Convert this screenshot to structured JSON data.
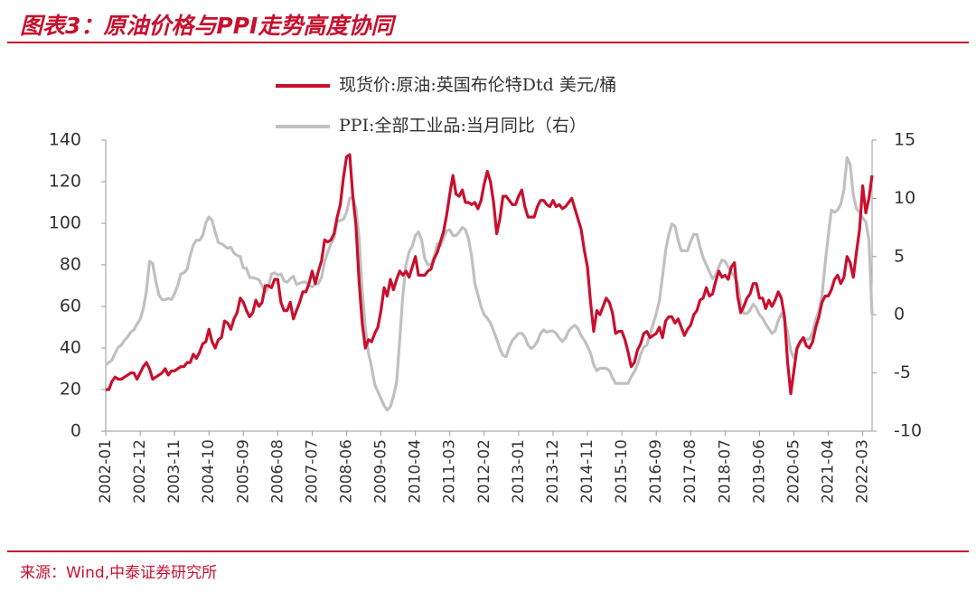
{
  "header": {
    "title": "图表3：原油价格与PPI走势高度协同"
  },
  "footer": {
    "source": "来源：Wind,中泰证券研究所"
  },
  "chart_data": {
    "type": "line",
    "categories": [
      "2002-01",
      null,
      null,
      null,
      null,
      null,
      null,
      null,
      null,
      null,
      null,
      "2002-12",
      null,
      null,
      null,
      null,
      null,
      null,
      null,
      null,
      null,
      null,
      "2003-11",
      null,
      null,
      null,
      null,
      null,
      null,
      null,
      null,
      null,
      null,
      "2004-10",
      null,
      null,
      null,
      null,
      null,
      null,
      null,
      null,
      null,
      null,
      "2005-09",
      null,
      null,
      null,
      null,
      null,
      null,
      null,
      null,
      null,
      null,
      "2006-08",
      null,
      null,
      null,
      null,
      null,
      null,
      null,
      null,
      null,
      null,
      "2007-07",
      null,
      null,
      null,
      null,
      null,
      null,
      null,
      null,
      null,
      null,
      "2008-06",
      null,
      null,
      null,
      null,
      null,
      null,
      null,
      null,
      null,
      null,
      "2009-05",
      null,
      null,
      null,
      null,
      null,
      null,
      null,
      null,
      null,
      null,
      "2010-04",
      null,
      null,
      null,
      null,
      null,
      null,
      null,
      null,
      null,
      null,
      "2011-03",
      null,
      null,
      null,
      null,
      null,
      null,
      null,
      null,
      null,
      null,
      "2012-02",
      null,
      null,
      null,
      null,
      null,
      null,
      null,
      null,
      null,
      null,
      "2013-01",
      null,
      null,
      null,
      null,
      null,
      null,
      null,
      null,
      null,
      null,
      "2013-12",
      null,
      null,
      null,
      null,
      null,
      null,
      null,
      null,
      null,
      null,
      "2014-11",
      null,
      null,
      null,
      null,
      null,
      null,
      null,
      null,
      null,
      null,
      "2015-10",
      null,
      null,
      null,
      null,
      null,
      null,
      null,
      null,
      null,
      null,
      "2016-09",
      null,
      null,
      null,
      null,
      null,
      null,
      null,
      null,
      null,
      null,
      "2017-08",
      null,
      null,
      null,
      null,
      null,
      null,
      null,
      null,
      null,
      null,
      "2018-07",
      null,
      null,
      null,
      null,
      null,
      null,
      null,
      null,
      null,
      null,
      "2019-06",
      null,
      null,
      null,
      null,
      null,
      null,
      null,
      null,
      null,
      null,
      "2020-05",
      null,
      null,
      null,
      null,
      null,
      null,
      null,
      null,
      null,
      null,
      "2021-04",
      null,
      null,
      null,
      null,
      null,
      null,
      null,
      null,
      null,
      null,
      "2022-03",
      null,
      null,
      null
    ],
    "series": [
      {
        "name": "现货价:原油:英国布伦特Dtd 美元/桶",
        "color": "#c8102e",
        "axis": "y",
        "values": [
          20,
          20,
          24,
          26,
          25,
          25,
          26,
          27,
          28,
          28,
          25,
          28,
          31,
          33,
          30,
          25,
          26,
          27,
          28,
          30,
          27,
          29,
          29,
          30,
          31,
          31,
          33,
          33,
          37,
          35,
          38,
          42,
          43,
          49,
          43,
          40,
          44,
          45,
          53,
          52,
          49,
          54,
          57,
          64,
          62,
          58,
          55,
          57,
          63,
          60,
          62,
          70,
          70,
          69,
          73,
          73,
          62,
          58,
          58,
          62,
          54,
          58,
          62,
          67,
          67,
          71,
          77,
          71,
          77,
          82,
          92,
          91,
          92,
          95,
          103,
          109,
          122,
          132,
          133,
          113,
          99,
          72,
          52,
          40,
          44,
          43,
          47,
          50,
          58,
          69,
          65,
          73,
          68,
          73,
          77,
          75,
          77,
          74,
          79,
          84,
          75,
          75,
          75,
          77,
          78,
          83,
          86,
          91,
          96,
          104,
          114,
          123,
          114,
          113,
          116,
          110,
          110,
          109,
          110,
          107,
          111,
          119,
          125,
          120,
          110,
          95,
          102,
          113,
          113,
          111,
          109,
          109,
          113,
          116,
          108,
          103,
          103,
          103,
          108,
          111,
          111,
          109,
          108,
          111,
          108,
          109,
          107,
          108,
          110,
          112,
          107,
          102,
          97,
          87,
          79,
          62,
          48,
          58,
          56,
          60,
          64,
          62,
          57,
          47,
          48,
          48,
          44,
          38,
          31,
          33,
          39,
          42,
          47,
          48,
          45,
          46,
          47,
          50,
          45,
          53,
          55,
          55,
          52,
          54,
          50,
          46,
          49,
          51,
          56,
          58,
          63,
          64,
          69,
          65,
          66,
          72,
          77,
          74,
          75,
          73,
          79,
          81,
          65,
          57,
          60,
          64,
          66,
          71,
          71,
          64,
          64,
          59,
          63,
          60,
          63,
          67,
          64,
          55,
          33,
          18,
          29,
          40,
          43,
          45,
          41,
          40,
          43,
          50,
          55,
          62,
          65,
          65,
          68,
          73,
          75,
          71,
          74,
          84,
          81,
          74,
          86,
          97,
          118,
          105,
          112,
          123
        ]
      },
      {
        "name": "PPI:全部工业品:当月同比（右）",
        "color": "#c0c0c0",
        "axis": "y2",
        "values": [
          -4.3,
          -4.1,
          -3.9,
          -3.3,
          -2.8,
          -2.6,
          -2.2,
          -1.9,
          -1.5,
          -1.3,
          -0.8,
          -0.4,
          0.5,
          2.0,
          4.6,
          4.4,
          2.9,
          1.7,
          1.3,
          1.3,
          1.4,
          1.3,
          1.8,
          2.5,
          3.5,
          3.6,
          3.9,
          5.1,
          6.0,
          6.4,
          6.4,
          6.8,
          7.9,
          8.4,
          8.1,
          7.1,
          6.2,
          6.1,
          5.9,
          5.7,
          5.8,
          5.3,
          5.1,
          5.0,
          4.0,
          4.0,
          3.2,
          3.2,
          3.1,
          3.0,
          2.5,
          1.9,
          2.4,
          3.5,
          3.6,
          3.4,
          3.5,
          2.9,
          2.8,
          3.1,
          3.3,
          2.6,
          2.7,
          2.8,
          2.8,
          2.5,
          2.4,
          2.6,
          2.7,
          3.2,
          4.6,
          5.4,
          6.1,
          6.6,
          8.0,
          8.1,
          8.2,
          8.8,
          10.0,
          10.1,
          9.1,
          6.6,
          2.0,
          -1.1,
          -3.3,
          -4.5,
          -6.0,
          -6.6,
          -7.2,
          -7.8,
          -8.2,
          -7.9,
          -7.0,
          -5.8,
          -2.1,
          1.7,
          4.3,
          5.4,
          5.9,
          6.8,
          7.1,
          6.4,
          4.8,
          4.3,
          4.3,
          5.0,
          6.1,
          5.9,
          6.6,
          7.2,
          7.3,
          6.8,
          6.8,
          7.1,
          7.5,
          7.3,
          6.5,
          5.0,
          2.7,
          1.7,
          0.7,
          0.0,
          -0.3,
          -0.7,
          -1.4,
          -2.1,
          -2.9,
          -3.5,
          -3.6,
          -2.8,
          -2.2,
          -1.9,
          -1.6,
          -1.6,
          -1.9,
          -2.6,
          -2.9,
          -2.7,
          -2.3,
          -1.6,
          -1.3,
          -1.5,
          -1.4,
          -1.4,
          -1.6,
          -2.0,
          -2.3,
          -2.0,
          -1.4,
          -1.1,
          -0.9,
          -1.2,
          -1.8,
          -2.2,
          -2.7,
          -3.3,
          -4.3,
          -4.8,
          -4.6,
          -4.6,
          -4.6,
          -4.8,
          -5.4,
          -5.9,
          -5.9,
          -5.9,
          -5.9,
          -5.9,
          -5.3,
          -4.9,
          -4.3,
          -3.4,
          -2.8,
          -2.6,
          -1.7,
          -0.8,
          0.1,
          1.2,
          3.3,
          5.5,
          6.9,
          7.8,
          7.6,
          6.4,
          5.5,
          5.5,
          5.5,
          6.3,
          6.9,
          6.9,
          5.8,
          4.9,
          4.3,
          3.7,
          3.1,
          3.4,
          4.1,
          4.7,
          4.6,
          4.1,
          3.6,
          3.3,
          2.7,
          0.9,
          0.1,
          0.1,
          0.4,
          0.9,
          0.6,
          0.0,
          -0.3,
          -0.8,
          -1.2,
          -1.6,
          -1.4,
          -0.5,
          0.1,
          -0.4,
          -1.5,
          -3.1,
          -3.7,
          -3.0,
          -2.4,
          -2.0,
          -2.1,
          -2.1,
          -1.5,
          -0.4,
          0.3,
          1.7,
          4.4,
          6.8,
          9.0,
          8.8,
          9.0,
          9.5,
          10.7,
          13.5,
          12.9,
          10.3,
          9.1,
          8.8,
          8.3,
          8.0,
          6.4,
          0.0
        ]
      }
    ],
    "ylim": [
      0,
      140
    ],
    "yticks": [
      0,
      20,
      40,
      60,
      80,
      100,
      120,
      140
    ],
    "y2lim": [
      -10,
      15
    ],
    "y2ticks": [
      -10,
      -5,
      0,
      5,
      10,
      15
    ],
    "grid": false
  }
}
